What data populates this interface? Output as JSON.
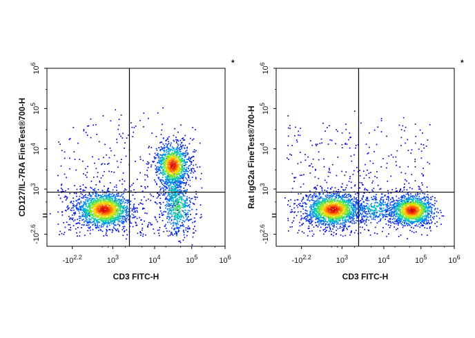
{
  "chart_data": [
    {
      "type": "scatter",
      "plot_style": "flow-cytometry pseudocolor density dot plot",
      "xlabel": "CD3 FITC-H",
      "ylabel": "CD127/IL-7RA FineTest®700-H",
      "marker": "*",
      "xscale": "biexponential",
      "yscale": "biexponential",
      "x_ticks": [
        {
          "value": -158,
          "base": "-10",
          "exp": "2.2"
        },
        {
          "value": 1000,
          "base": "10",
          "exp": "3"
        },
        {
          "value": 10000,
          "base": "10",
          "exp": "4"
        },
        {
          "value": 100000,
          "base": "10",
          "exp": "5"
        },
        {
          "value": 1000000,
          "base": "10",
          "exp": "6"
        }
      ],
      "y_ticks": [
        {
          "value": -398,
          "base": "-10",
          "exp": "2.6"
        },
        {
          "value": 1000,
          "base": "10",
          "exp": "3"
        },
        {
          "value": 10000,
          "base": "10",
          "exp": "4"
        },
        {
          "value": 100000,
          "base": "10",
          "exp": "5"
        },
        {
          "value": 1000000,
          "base": "10",
          "exp": "6"
        }
      ],
      "gate_x": 2500,
      "gate_y": 700,
      "populations": [
        {
          "label": "CD3- CD127-",
          "x": 350,
          "y": 60,
          "density": "high"
        },
        {
          "label": "CD3+ CD127+",
          "x": 30000,
          "y": 4000,
          "density": "high"
        },
        {
          "label": "CD3+ CD127-",
          "x": 40000,
          "y": 100,
          "density": "medium"
        }
      ]
    },
    {
      "type": "scatter",
      "plot_style": "flow-cytometry pseudocolor density dot plot",
      "xlabel": "CD3 FITC-H",
      "ylabel": "Rat IgG2a FineTest®700-H",
      "marker": "*",
      "xscale": "biexponential",
      "yscale": "biexponential",
      "x_ticks": [
        {
          "value": -158,
          "base": "-10",
          "exp": "2.2"
        },
        {
          "value": 1000,
          "base": "10",
          "exp": "3"
        },
        {
          "value": 10000,
          "base": "10",
          "exp": "4"
        },
        {
          "value": 100000,
          "base": "10",
          "exp": "5"
        },
        {
          "value": 1000000,
          "base": "10",
          "exp": "6"
        }
      ],
      "y_ticks": [
        {
          "value": -398,
          "base": "-10",
          "exp": "2.6"
        },
        {
          "value": 1000,
          "base": "10",
          "exp": "3"
        },
        {
          "value": 10000,
          "base": "10",
          "exp": "4"
        },
        {
          "value": 100000,
          "base": "10",
          "exp": "5"
        },
        {
          "value": 1000000,
          "base": "10",
          "exp": "6"
        }
      ],
      "gate_x": 2500,
      "gate_y": 700,
      "populations": [
        {
          "label": "CD3- isotype",
          "x": 350,
          "y": 60,
          "density": "high"
        },
        {
          "label": "CD3+ isotype",
          "x": 55000,
          "y": 50,
          "density": "high"
        }
      ]
    }
  ]
}
